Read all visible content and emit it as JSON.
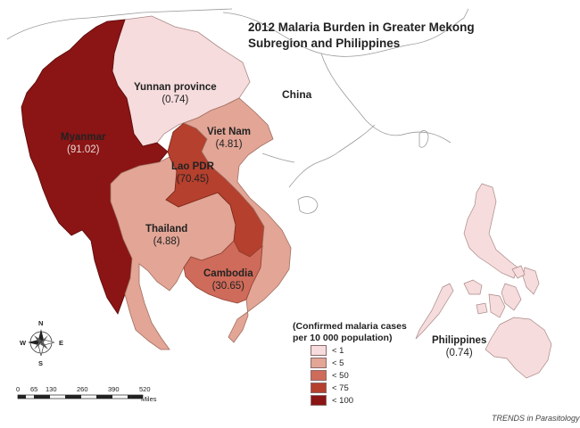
{
  "title_line1": "2012 Malaria Burden in Greater Mekong",
  "title_line2": "Subregion and Philippines",
  "regions": [
    {
      "id": "myanmar",
      "name": "Myanmar",
      "value": "(91.02)",
      "color": "#8b1414"
    },
    {
      "id": "yunnan",
      "name": "Yunnan province",
      "value": "(0.74)",
      "color": "#f6dcdc"
    },
    {
      "id": "vietnam",
      "name": "Viet Nam",
      "value": "(4.81)",
      "color": "#e2a596"
    },
    {
      "id": "laos",
      "name": "Lao PDR",
      "value": "(70.45)",
      "color": "#b5402e"
    },
    {
      "id": "thailand",
      "name": "Thailand",
      "value": "(4.88)",
      "color": "#e2a596"
    },
    {
      "id": "cambodia",
      "name": "Cambodia",
      "value": "(30.65)",
      "color": "#cf6b5a"
    },
    {
      "id": "philippines",
      "name": "Philippines",
      "value": "(0.74)",
      "color": "#f6dcdc"
    }
  ],
  "china_label": "China",
  "legend": {
    "title_line1": "(Confirmed malaria cases",
    "title_line2": "per 10 000 population)",
    "items": [
      {
        "label": "< 1",
        "color": "#f6dcdc"
      },
      {
        "label": "< 5",
        "color": "#e2a596"
      },
      {
        "label": "< 50",
        "color": "#cf6b5a"
      },
      {
        "label": "< 75",
        "color": "#b5402e"
      },
      {
        "label": "< 100",
        "color": "#8b1414"
      }
    ]
  },
  "scale": {
    "ticks": [
      "0",
      "65",
      "130",
      "260",
      "390",
      "520"
    ],
    "unit": "Miles"
  },
  "compass": {
    "n": "N",
    "s": "S",
    "e": "E",
    "w": "W"
  },
  "credit": "TRENDS in Parasitology"
}
